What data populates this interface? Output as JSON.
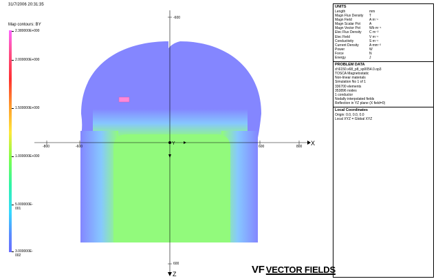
{
  "timestamp": "31/7/2006 20:31:35",
  "legend": {
    "title": "Map contours: BY",
    "labels": [
      "2.380000E+000",
      "2.000000E+000",
      "1.500000E+000",
      "1.000000E+000",
      "5.000000E-001",
      "3.000000E-002"
    ]
  },
  "axes": {
    "x_label": "X",
    "z_label": "Z",
    "y_marker": "Y",
    "x_ticks": [
      "-800",
      "-600",
      "600",
      "800"
    ],
    "z_top": "-600",
    "z_bottom": "600"
  },
  "units": {
    "title": "UNITS",
    "rows": [
      {
        "name": "Length",
        "unit": "mm"
      },
      {
        "name": "Magn Flux Density",
        "unit": "T"
      },
      {
        "name": "Magn Field",
        "unit": "A m⁻¹"
      },
      {
        "name": "Magn Scalar Pot",
        "unit": "A"
      },
      {
        "name": "Magn Vector Pot",
        "unit": "Wb m⁻¹"
      },
      {
        "name": "Elec Flux Density",
        "unit": "C m⁻²"
      },
      {
        "name": "Elec Field",
        "unit": "V m⁻¹"
      },
      {
        "name": "Conductivity",
        "unit": "S m⁻¹"
      },
      {
        "name": "Current Density",
        "unit": "A mm⁻²"
      },
      {
        "name": "Power",
        "unit": "W"
      },
      {
        "name": "Force",
        "unit": "N"
      },
      {
        "name": "Energy",
        "unit": "J"
      }
    ]
  },
  "problem": {
    "title": "PROBLEM DATA",
    "lines": [
      "d:\\6150.x68_p8_sp0054.0.op3",
      "TOSCA Magnetostatic",
      "Non-linear materials",
      "Simulation No 1 of 1",
      "336700 elements",
      "353896 nodes",
      "1 conductor",
      "Nodally interpolated fields",
      "Reflection in YZ plane (X field=0)"
    ]
  },
  "coords": {
    "title": "Local Coordinates",
    "lines": [
      "Origin: 0.0, 0.0, 0.0",
      "Local XYZ = Global XYZ"
    ]
  },
  "logo": {
    "mark": "VF",
    "text": "VECTOR FIELDS"
  },
  "colors": {
    "outer": "#8080ff",
    "inner": "#92fa7c",
    "highlight": "#ff88d8"
  }
}
